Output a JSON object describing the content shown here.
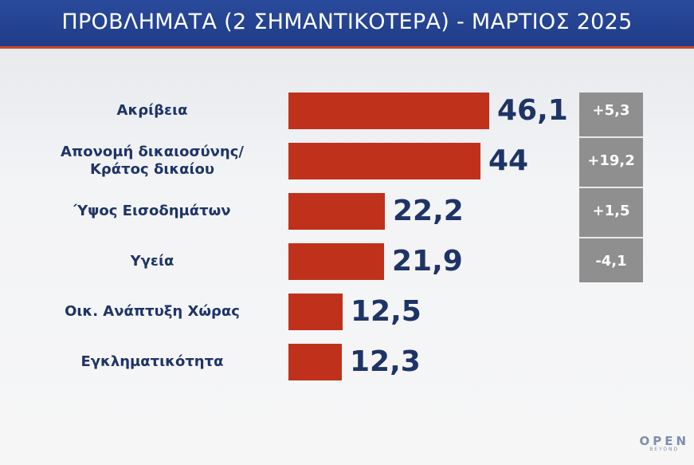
{
  "header": {
    "title": "ΠΡΟΒΛΗΜΑΤΑ (2 ΣΗΜΑΝΤΙΚΟΤΕΡΑ) - ΜΑΡΤΙΟΣ 2025"
  },
  "colors": {
    "header_bg": "#1f3c88",
    "accent_line": "#d24423",
    "bar": "#c0311c",
    "label_text": "#1e3466",
    "change_box": "#8f8f8f"
  },
  "chart_data": {
    "type": "bar",
    "orientation": "horizontal",
    "title": "ΠΡΟΒΛΗΜΑΤΑ (2 ΣΗΜΑΝΤΙΚΟΤΕΡΑ) - ΜΑΡΤΙΟΣ 2025",
    "xlim": [
      0,
      46.1
    ],
    "grid": false,
    "categories": [
      "Ακρίβεια",
      "Απονομή δικαιοσύνης/\nΚράτος δικαίου",
      "Ύψος Εισοδημάτων",
      "Υγεία",
      "Οικ. Ανάπτυξη Χώρας",
      "Εγκληματικότητα"
    ],
    "values": [
      46.1,
      44,
      22.2,
      21.9,
      12.5,
      12.3
    ],
    "value_labels": [
      "46,1",
      "44",
      "22,2",
      "21,9",
      "12,5",
      "12,3"
    ],
    "changes": [
      "+5,3",
      "+19,2",
      "+1,5",
      "-4,1"
    ]
  },
  "logo": {
    "text": "OPEN",
    "subtext": "BEYOND"
  }
}
